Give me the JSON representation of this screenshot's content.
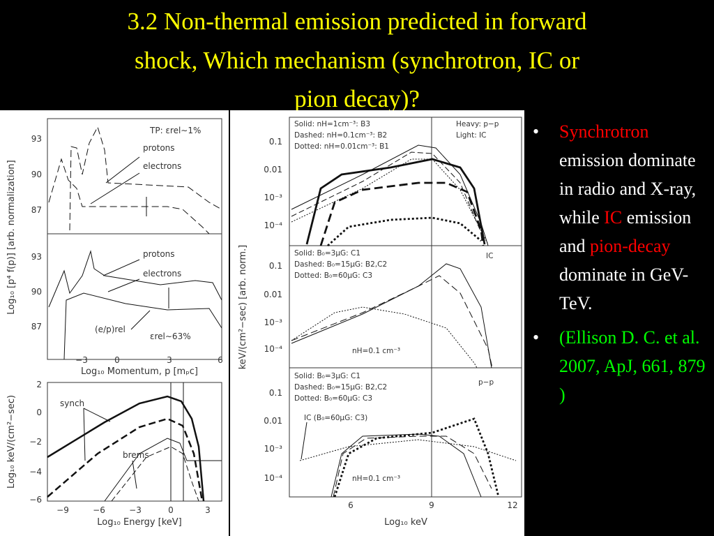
{
  "title_lines": [
    "3.2 Non-thermal emission predicted in forward",
    "shock, Which mechanism (synchrotron, IC or",
    "pion decay)?"
  ],
  "bullets": [
    {
      "parts": [
        {
          "text": "Synchrotron",
          "color": "#ff0000"
        },
        {
          "text": " emission dominate in radio and X-ray, while ",
          "color": "#ffffff"
        },
        {
          "text": "IC",
          "color": "#ff0000"
        },
        {
          "text": " emission and ",
          "color": "#ffffff"
        },
        {
          "text": "pion-decay",
          "color": "#ff0000"
        },
        {
          "text": " dominate in GeV-TeV.",
          "color": "#ffffff"
        }
      ]
    },
    {
      "parts": [
        {
          "text": "(Ellison D. C. et al. 2007, ApJ, 661, 879 )",
          "color": "#00ff00"
        }
      ]
    }
  ],
  "left_figure": {
    "y_label_top": "Log₁₀ [p⁴ f(p)] [arb. normalization]",
    "x_label_mid": "Log₁₀ Momentum, p [mₚc]",
    "y_label_bottom": "Log₁₀ keV/(cm²−sec)",
    "x_label_bottom": "Log₁₀ Energy [keV]",
    "top_panel": {
      "note": "TP: εrel∼1%",
      "labels": [
        "protons",
        "electrons"
      ],
      "yticks": [
        "93",
        "90",
        "87"
      ]
    },
    "mid_panel": {
      "labels": [
        "protons",
        "electrons",
        "(e/p)rel",
        "εrel∼63%"
      ],
      "yticks": [
        "93",
        "90",
        "87"
      ],
      "xticks": [
        "−3",
        "0",
        "3",
        "6"
      ]
    },
    "bottom_panel": {
      "labels": [
        "synch",
        "brems"
      ],
      "yticks": [
        "2",
        "0",
        "−2",
        "−4",
        "−6"
      ],
      "xticks": [
        "−9",
        "−6",
        "−3",
        "0",
        "3"
      ]
    }
  },
  "right_figure": {
    "y_label": "keV/(cm²−sec) [arb. norm.]",
    "x_label": "Log₁₀ keV",
    "xticks": [
      "6",
      "9",
      "12"
    ],
    "yticks": [
      "0.1",
      "0.01",
      "10⁻³",
      "10⁻⁴"
    ],
    "top_panel": {
      "legend": [
        "Solid: nH=1cm⁻³: B3",
        "Dashed: nH=0.1cm⁻³: B2",
        "Dotted: nH=0.01cm⁻³: B1"
      ],
      "key": [
        "Heavy: p−p",
        "Light: IC"
      ]
    },
    "mid_panel": {
      "legend": [
        "Solid: B₀=3μG: C1",
        "Dashed: B₀=15μG: B2,C2",
        "Dotted: B₀=60μG: C3"
      ],
      "tag": "IC",
      "density": "nH=0.1 cm⁻³"
    },
    "bottom_panel": {
      "legend": [
        "Solid: B₀=3μG: C1",
        "Dashed: B₀=15μG: B2,C2",
        "Dotted: B₀=60μG: C3"
      ],
      "tag": "p−p",
      "note": "IC (B₀=60μG: C3)",
      "density": "nH=0.1 cm⁻³"
    }
  }
}
